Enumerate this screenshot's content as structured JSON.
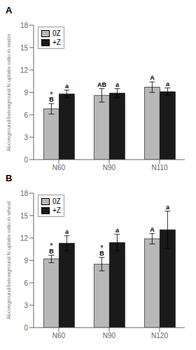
{
  "chart_data": [
    {
      "type": "bar",
      "title": "A",
      "y_label": "Aboveground/belowground N uptake ratio in maize",
      "categories": [
        "N60",
        "N90",
        "N110"
      ],
      "series": [
        {
          "name": "0Z",
          "color": "#b8b8b8",
          "values": [
            6.8,
            8.6,
            9.7
          ],
          "errors": [
            0.7,
            0.9,
            0.7
          ],
          "letters": [
            "B",
            "AB",
            "A"
          ],
          "sig": [
            "*",
            null,
            null
          ]
        },
        {
          "name": "+Z",
          "color": "#1a1a1a",
          "values": [
            8.8,
            8.9,
            9.1
          ],
          "errors": [
            0.5,
            0.6,
            0.5
          ],
          "letters": [
            "a",
            "a",
            "a"
          ]
        }
      ],
      "ylim": [
        0,
        18
      ],
      "yticks": [
        0,
        3,
        6,
        9,
        12,
        15,
        18
      ],
      "legend": "upper left"
    },
    {
      "type": "bar",
      "title": "B",
      "y_label": "Aboveground/belowground N uptake ratio in wheat",
      "categories": [
        "N60",
        "N90",
        "N120"
      ],
      "series": [
        {
          "name": "0Z",
          "color": "#b8b8b8",
          "values": [
            9.2,
            8.5,
            11.9
          ],
          "errors": [
            0.5,
            0.9,
            0.7
          ],
          "letters": [
            "B",
            "B",
            "A"
          ],
          "sig": [
            "*",
            "*",
            null
          ]
        },
        {
          "name": "+Z",
          "color": "#1a1a1a",
          "values": [
            11.3,
            11.4,
            13.1
          ],
          "errors": [
            1.0,
            1.1,
            2.5
          ],
          "letters": [
            "a",
            "a",
            "a"
          ]
        }
      ],
      "ylim": [
        0,
        18
      ],
      "yticks": [
        0,
        3,
        6,
        9,
        12,
        15,
        18
      ],
      "legend": "upper left"
    }
  ]
}
